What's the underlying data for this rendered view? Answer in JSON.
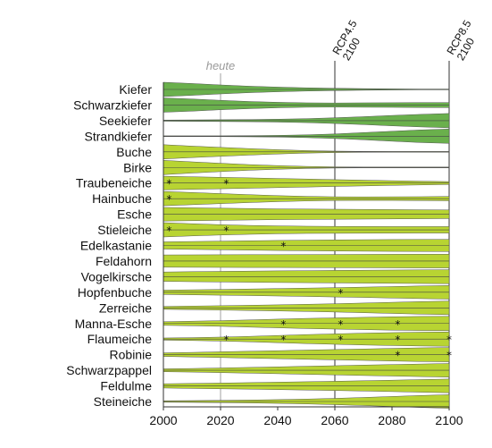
{
  "chart_data": {
    "type": "area",
    "title": "",
    "xlabel": "",
    "ylabel": "",
    "xlim": [
      2000,
      2100
    ],
    "x_ticks": [
      2000,
      2020,
      2040,
      2060,
      2080,
      2100
    ],
    "x_tick_labels": [
      "2000",
      "2020",
      "2040",
      "2060",
      "2080",
      "2100"
    ],
    "reference_lines": [
      {
        "x": 2020,
        "label": "heute"
      },
      {
        "x": 2060,
        "label_lines": [
          "RCP4.5",
          "2100"
        ]
      },
      {
        "x": 2100,
        "label_lines": [
          "RCP8.5",
          "2100"
        ]
      }
    ],
    "colors": {
      "conifer": "#6ab04c",
      "broadleaf": "#b8d432",
      "stroke": "#555555"
    },
    "x": [
      2000,
      2010,
      2020,
      2030,
      2040,
      2050,
      2060,
      2070,
      2080,
      2090,
      2100
    ],
    "series": [
      {
        "name": "Kiefer",
        "group": "conifer",
        "values": [
          1.0,
          0.82,
          0.62,
          0.45,
          0.32,
          0.22,
          0.16,
          0.11,
          0.07,
          0.05,
          0.04
        ],
        "stars": []
      },
      {
        "name": "Schwarzkiefer",
        "group": "conifer",
        "values": [
          1.0,
          0.85,
          0.66,
          0.5,
          0.38,
          0.3,
          0.28,
          0.3,
          0.32,
          0.34,
          0.35
        ],
        "stars": []
      },
      {
        "name": "Seekiefer",
        "group": "conifer",
        "values": [
          0.08,
          0.1,
          0.12,
          0.15,
          0.2,
          0.28,
          0.4,
          0.55,
          0.72,
          0.88,
          1.0
        ],
        "stars": []
      },
      {
        "name": "Strandkiefer",
        "group": "conifer",
        "values": [
          0.02,
          0.03,
          0.05,
          0.08,
          0.12,
          0.2,
          0.32,
          0.5,
          0.7,
          0.88,
          1.0
        ],
        "stars": []
      },
      {
        "name": "Buche",
        "group": "broadleaf",
        "values": [
          1.0,
          0.8,
          0.62,
          0.45,
          0.3,
          0.18,
          0.1,
          0.06,
          0.04,
          0.03,
          0.02
        ],
        "stars": []
      },
      {
        "name": "Birke",
        "group": "broadleaf",
        "values": [
          1.0,
          0.78,
          0.58,
          0.4,
          0.26,
          0.15,
          0.08,
          0.05,
          0.03,
          0.02,
          0.02
        ],
        "stars": []
      },
      {
        "name": "Traubeneiche",
        "group": "broadleaf",
        "values": [
          0.95,
          0.88,
          0.8,
          0.72,
          0.64,
          0.56,
          0.48,
          0.4,
          0.32,
          0.26,
          0.2
        ],
        "stars": [
          2002,
          2022
        ]
      },
      {
        "name": "Hainbuche",
        "group": "broadleaf",
        "values": [
          1.0,
          0.85,
          0.7,
          0.55,
          0.42,
          0.32,
          0.26,
          0.24,
          0.25,
          0.27,
          0.3
        ],
        "stars": [
          2002
        ]
      },
      {
        "name": "Esche",
        "group": "broadleaf",
        "values": [
          0.95,
          0.9,
          0.85,
          0.8,
          0.75,
          0.72,
          0.7,
          0.68,
          0.65,
          0.62,
          0.6
        ],
        "stars": []
      },
      {
        "name": "Stieleiche",
        "group": "broadleaf",
        "values": [
          1.0,
          0.85,
          0.72,
          0.62,
          0.55,
          0.5,
          0.48,
          0.47,
          0.46,
          0.45,
          0.45
        ],
        "stars": [
          2002,
          2022
        ]
      },
      {
        "name": "Edelkastanie",
        "group": "broadleaf",
        "values": [
          0.5,
          0.55,
          0.6,
          0.65,
          0.7,
          0.74,
          0.77,
          0.8,
          0.82,
          0.84,
          0.85
        ],
        "stars": [
          2042
        ]
      },
      {
        "name": "Feldahorn",
        "group": "broadleaf",
        "values": [
          0.85,
          0.87,
          0.88,
          0.89,
          0.9,
          0.91,
          0.92,
          0.93,
          0.94,
          0.95,
          0.95
        ],
        "stars": []
      },
      {
        "name": "Vogelkirsche",
        "group": "broadleaf",
        "values": [
          0.65,
          0.7,
          0.74,
          0.78,
          0.81,
          0.84,
          0.87,
          0.9,
          0.93,
          0.95,
          0.97
        ],
        "stars": []
      },
      {
        "name": "Hopfenbuche",
        "group": "broadleaf",
        "values": [
          0.3,
          0.35,
          0.4,
          0.46,
          0.52,
          0.58,
          0.65,
          0.72,
          0.8,
          0.88,
          0.95
        ],
        "stars": [
          2062
        ]
      },
      {
        "name": "Zerreiche",
        "group": "broadleaf",
        "values": [
          0.2,
          0.25,
          0.3,
          0.36,
          0.43,
          0.5,
          0.58,
          0.67,
          0.77,
          0.87,
          0.95
        ],
        "stars": []
      },
      {
        "name": "Manna-Esche",
        "group": "broadleaf",
        "values": [
          0.25,
          0.32,
          0.4,
          0.5,
          0.6,
          0.7,
          0.78,
          0.86,
          0.93,
          0.98,
          1.0
        ],
        "stars": [
          2042,
          2062,
          2082
        ]
      },
      {
        "name": "Flaumeiche",
        "group": "broadleaf",
        "values": [
          0.15,
          0.2,
          0.28,
          0.38,
          0.5,
          0.62,
          0.72,
          0.82,
          0.9,
          0.96,
          1.0
        ],
        "stars": [
          2022,
          2042,
          2062,
          2082,
          2100
        ]
      },
      {
        "name": "Robinie",
        "group": "broadleaf",
        "values": [
          0.25,
          0.32,
          0.4,
          0.48,
          0.56,
          0.64,
          0.72,
          0.8,
          0.88,
          0.95,
          1.0
        ],
        "stars": [
          2082,
          2100
        ]
      },
      {
        "name": "Schwarzpappel",
        "group": "broadleaf",
        "values": [
          0.2,
          0.25,
          0.32,
          0.4,
          0.48,
          0.56,
          0.64,
          0.72,
          0.8,
          0.88,
          0.95
        ],
        "stars": []
      },
      {
        "name": "Feldulme",
        "group": "broadleaf",
        "values": [
          0.3,
          0.35,
          0.4,
          0.46,
          0.52,
          0.58,
          0.64,
          0.72,
          0.8,
          0.88,
          0.95
        ],
        "stars": []
      },
      {
        "name": "Steineiche",
        "group": "broadleaf",
        "values": [
          0.1,
          0.13,
          0.16,
          0.2,
          0.26,
          0.34,
          0.44,
          0.56,
          0.7,
          0.84,
          0.95
        ],
        "stars": []
      }
    ]
  }
}
